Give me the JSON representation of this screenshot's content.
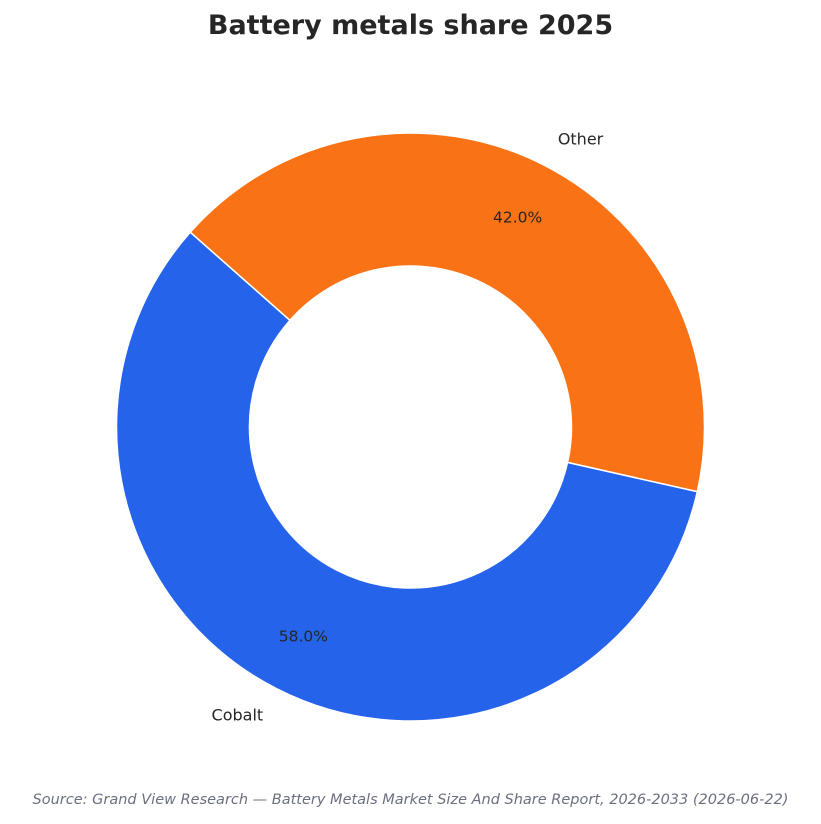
{
  "chart_data": {
    "type": "pie",
    "variant": "donut",
    "title": "Battery metals share 2025",
    "categories": [
      "Cobalt",
      "Other"
    ],
    "values": [
      58.0,
      42.0
    ],
    "value_labels": [
      "58.0%",
      "42.0%"
    ],
    "colors": [
      "#2563eb",
      "#f97316"
    ],
    "legend": "none",
    "label_placement": "outside"
  },
  "source": "Source: Grand View Research — Battery Metals Market Size And Share Report, 2026-2033 (2026-06-22)"
}
